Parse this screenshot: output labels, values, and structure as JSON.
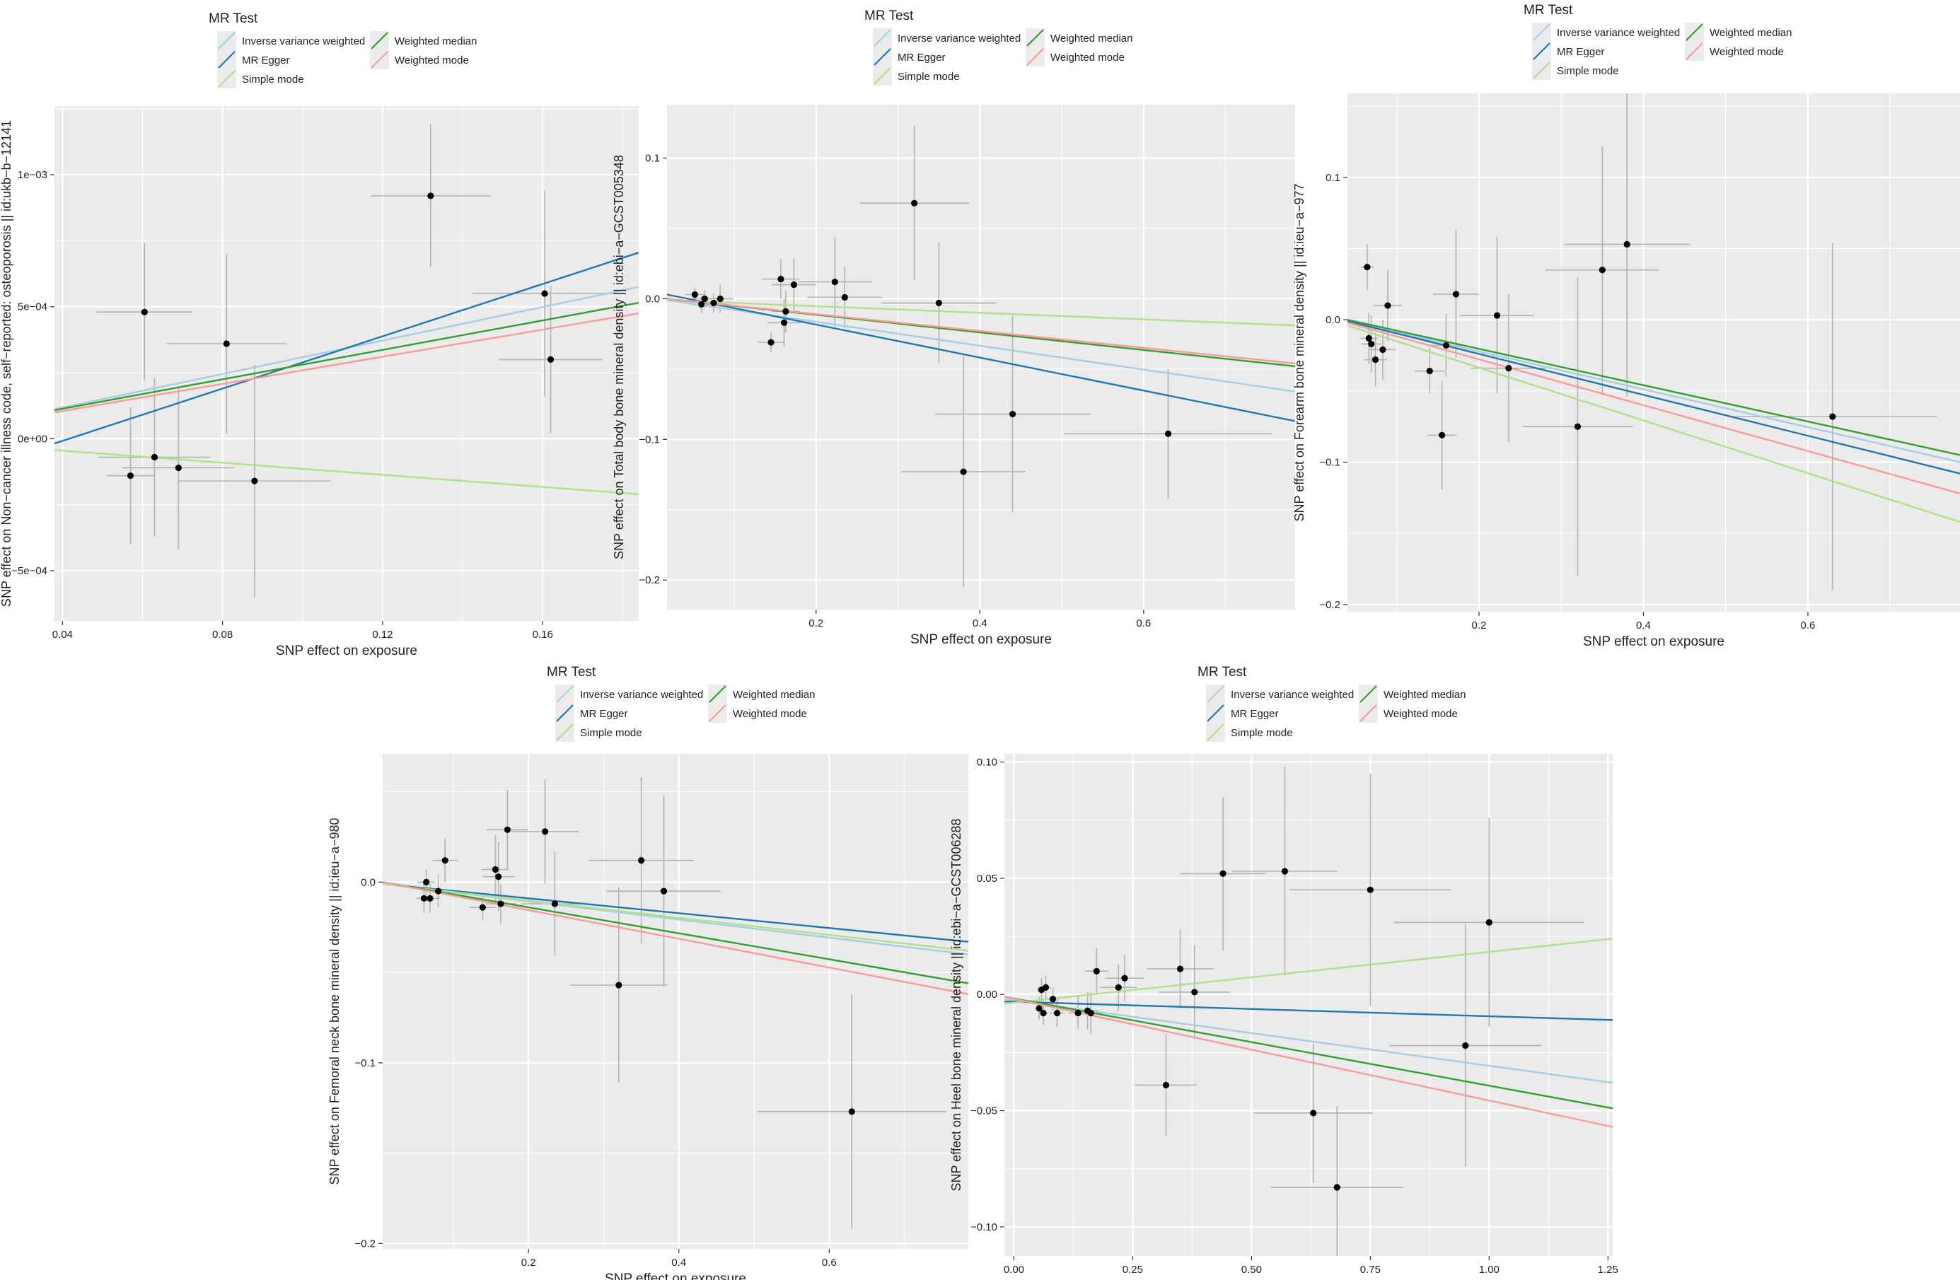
{
  "legend": {
    "title": "MR Test",
    "methods": [
      {
        "key": "ivw",
        "label": "Inverse variance weighted",
        "color": "#A6CEE3"
      },
      {
        "key": "egger",
        "label": "MR Egger",
        "color": "#1F78B4"
      },
      {
        "key": "simple",
        "label": "Simple mode",
        "color": "#B2DF8A"
      },
      {
        "key": "wmedian",
        "label": "Weighted median",
        "color": "#33A02C"
      },
      {
        "key": "wmode",
        "label": "Weighted mode",
        "color": "#FB9A99"
      }
    ]
  },
  "chart_data": [
    {
      "type": "scatter",
      "panel": "A",
      "xlabel": "SNP effect on exposure",
      "ylabel": "SNP effect on Non−cancer illness code, self−reported: osteoporosis || id:ukb−b−12141",
      "xlim": [
        0.038,
        0.184
      ],
      "ylim": [
        -0.00069,
        0.00126
      ],
      "xticks": [
        0.04,
        0.08,
        0.12,
        0.16
      ],
      "xtick_labels": [
        "0.04",
        "0.08",
        "0.12",
        "0.16"
      ],
      "yticks": [
        -0.0005,
        0,
        0.0005,
        0.001
      ],
      "ytick_labels": [
        "−5e−04",
        "0e+00",
        "5e−04",
        "1e−03"
      ],
      "points": [
        {
          "x": 0.057,
          "y": -0.00014,
          "se_x": 0.006,
          "se_y": 0.00026
        },
        {
          "x": 0.0605,
          "y": 0.00048,
          "se_x": 0.012,
          "se_y": 0.00026
        },
        {
          "x": 0.063,
          "y": -7e-05,
          "se_x": 0.014,
          "se_y": 0.0003
        },
        {
          "x": 0.069,
          "y": -0.00011,
          "se_x": 0.014,
          "se_y": 0.00031
        },
        {
          "x": 0.081,
          "y": 0.00036,
          "se_x": 0.015,
          "se_y": 0.00034
        },
        {
          "x": 0.088,
          "y": -0.00016,
          "se_x": 0.019,
          "se_y": 0.00044
        },
        {
          "x": 0.132,
          "y": 0.00092,
          "se_x": 0.015,
          "se_y": 0.00027
        },
        {
          "x": 0.1605,
          "y": 0.00055,
          "se_x": 0.018,
          "se_y": 0.00039
        },
        {
          "x": 0.162,
          "y": 0.0003,
          "se_x": 0.013,
          "se_y": 0.00028
        }
      ],
      "lines": [
        {
          "method": "ivw",
          "y0": 0.000112,
          "y1": 0.000575
        },
        {
          "method": "egger",
          "y0": -1.8e-05,
          "y1": 0.000705
        },
        {
          "method": "simple",
          "y0": -4.3e-05,
          "y1": -0.00021
        },
        {
          "method": "wmedian",
          "y0": 0.000108,
          "y1": 0.000515
        },
        {
          "method": "wmode",
          "y0": 0.0001,
          "y1": 0.000475
        }
      ]
    },
    {
      "type": "scatter",
      "panel": "B",
      "xlabel": "SNP effect on exposure",
      "ylabel": "SNP effect on Total body bone mineral density || id:ebi−a−GCST005348",
      "xlim": [
        0.018,
        0.785
      ],
      "ylim": [
        -0.221,
        0.138
      ],
      "xticks": [
        0.2,
        0.4,
        0.6
      ],
      "xtick_labels": [
        "0.2",
        "0.4",
        "0.6"
      ],
      "yticks": [
        -0.2,
        -0.1,
        0,
        0.1
      ],
      "ytick_labels": [
        "−0.2",
        "−0.1",
        "0.0",
        "0.1"
      ],
      "points": [
        {
          "x": 0.052,
          "y": 0.003,
          "se_x": 0.012,
          "se_y": 0.005
        },
        {
          "x": 0.06,
          "y": -0.004,
          "se_x": 0.013,
          "se_y": 0.006
        },
        {
          "x": 0.064,
          "y": 0.0,
          "se_x": 0.014,
          "se_y": 0.006
        },
        {
          "x": 0.075,
          "y": -0.003,
          "se_x": 0.015,
          "se_y": 0.007
        },
        {
          "x": 0.083,
          "y": 0.0,
          "se_x": 0.016,
          "se_y": 0.01
        },
        {
          "x": 0.145,
          "y": -0.031,
          "se_x": 0.016,
          "se_y": 0.007
        },
        {
          "x": 0.157,
          "y": 0.014,
          "se_x": 0.023,
          "se_y": 0.014
        },
        {
          "x": 0.163,
          "y": -0.009,
          "se_x": 0.017,
          "se_y": 0.015
        },
        {
          "x": 0.161,
          "y": -0.017,
          "se_x": 0.02,
          "se_y": 0.017
        },
        {
          "x": 0.173,
          "y": 0.01,
          "se_x": 0.027,
          "se_y": 0.019
        },
        {
          "x": 0.223,
          "y": 0.012,
          "se_x": 0.045,
          "se_y": 0.032
        },
        {
          "x": 0.235,
          "y": 0.001,
          "se_x": 0.046,
          "se_y": 0.022
        },
        {
          "x": 0.32,
          "y": 0.068,
          "se_x": 0.067,
          "se_y": 0.055
        },
        {
          "x": 0.35,
          "y": -0.003,
          "se_x": 0.07,
          "se_y": 0.043
        },
        {
          "x": 0.38,
          "y": -0.123,
          "se_x": 0.076,
          "se_y": 0.082
        },
        {
          "x": 0.44,
          "y": -0.082,
          "se_x": 0.095,
          "se_y": 0.07
        },
        {
          "x": 0.63,
          "y": -0.096,
          "se_x": 0.127,
          "se_y": 0.046
        }
      ],
      "lines": [
        {
          "method": "ivw",
          "y0": -0.001,
          "y1": -0.066
        },
        {
          "method": "egger",
          "y0": 0.003,
          "y1": -0.087
        },
        {
          "method": "simple",
          "y0": -0.001,
          "y1": -0.019
        },
        {
          "method": "wmedian",
          "y0": 0.0,
          "y1": -0.048
        },
        {
          "method": "wmode",
          "y0": 0.0,
          "y1": -0.046
        }
      ]
    },
    {
      "type": "scatter",
      "panel": "C",
      "xlabel": "SNP effect on exposure",
      "ylabel": "SNP effect on Forearm bone mineral density || id:ieu−a−977",
      "xlim": [
        0.04,
        0.785
      ],
      "ylim": [
        -0.205,
        0.159
      ],
      "xticks": [
        0.2,
        0.4,
        0.6
      ],
      "xtick_labels": [
        "0.2",
        "0.4",
        "0.6"
      ],
      "yticks": [
        -0.2,
        -0.1,
        0,
        0.1
      ],
      "ytick_labels": [
        "−0.2",
        "−0.1",
        "0.0",
        "0.1"
      ],
      "points": [
        {
          "x": 0.064,
          "y": 0.037,
          "se_x": 0.008,
          "se_y": 0.016
        },
        {
          "x": 0.066,
          "y": -0.013,
          "se_x": 0.011,
          "se_y": 0.018
        },
        {
          "x": 0.069,
          "y": -0.017,
          "se_x": 0.012,
          "se_y": 0.02
        },
        {
          "x": 0.074,
          "y": -0.028,
          "se_x": 0.014,
          "se_y": 0.019
        },
        {
          "x": 0.083,
          "y": -0.021,
          "se_x": 0.016,
          "se_y": 0.021
        },
        {
          "x": 0.089,
          "y": 0.01,
          "se_x": 0.017,
          "se_y": 0.025
        },
        {
          "x": 0.14,
          "y": -0.036,
          "se_x": 0.018,
          "se_y": 0.016
        },
        {
          "x": 0.155,
          "y": -0.081,
          "se_x": 0.018,
          "se_y": 0.038
        },
        {
          "x": 0.16,
          "y": -0.018,
          "se_x": 0.024,
          "se_y": 0.022
        },
        {
          "x": 0.172,
          "y": 0.018,
          "se_x": 0.028,
          "se_y": 0.045
        },
        {
          "x": 0.222,
          "y": 0.003,
          "se_x": 0.045,
          "se_y": 0.055
        },
        {
          "x": 0.236,
          "y": -0.034,
          "se_x": 0.046,
          "se_y": 0.052
        },
        {
          "x": 0.32,
          "y": -0.075,
          "se_x": 0.067,
          "se_y": 0.105
        },
        {
          "x": 0.35,
          "y": 0.035,
          "se_x": 0.069,
          "se_y": 0.087
        },
        {
          "x": 0.38,
          "y": 0.053,
          "se_x": 0.076,
          "se_y": 0.107
        },
        {
          "x": 0.63,
          "y": -0.068,
          "se_x": 0.127,
          "se_y": 0.122
        }
      ],
      "lines": [
        {
          "method": "ivw",
          "y0": -0.001,
          "y1": -0.1
        },
        {
          "method": "egger",
          "y0": -0.001,
          "y1": -0.108
        },
        {
          "method": "simple",
          "y0": -0.004,
          "y1": -0.142
        },
        {
          "method": "wmedian",
          "y0": 0.0,
          "y1": -0.095
        },
        {
          "method": "wmode",
          "y0": -0.002,
          "y1": -0.122
        }
      ]
    },
    {
      "type": "scatter",
      "panel": "D",
      "xlabel": "SNP effect on exposure",
      "ylabel": "SNP effect on Femoral neck bone mineral density || id:ieu−a−980",
      "xlim": [
        0.006,
        0.785
      ],
      "ylim": [
        -0.203,
        0.071
      ],
      "xticks": [
        0.2,
        0.4,
        0.6
      ],
      "xtick_labels": [
        "0.2",
        "0.4",
        "0.6"
      ],
      "yticks": [
        -0.2,
        -0.1,
        0
      ],
      "ytick_labels": [
        "−0.2",
        "−0.1",
        "0.0"
      ],
      "points": [
        {
          "x": 0.061,
          "y": -0.009,
          "se_x": 0.01,
          "se_y": 0.008
        },
        {
          "x": 0.064,
          "y": 0.0,
          "se_x": 0.012,
          "se_y": 0.007
        },
        {
          "x": 0.069,
          "y": -0.009,
          "se_x": 0.013,
          "se_y": 0.008
        },
        {
          "x": 0.08,
          "y": -0.005,
          "se_x": 0.015,
          "se_y": 0.009
        },
        {
          "x": 0.089,
          "y": 0.012,
          "se_x": 0.017,
          "se_y": 0.012
        },
        {
          "x": 0.139,
          "y": -0.014,
          "se_x": 0.018,
          "se_y": 0.007
        },
        {
          "x": 0.156,
          "y": 0.007,
          "se_x": 0.018,
          "se_y": 0.019
        },
        {
          "x": 0.16,
          "y": 0.003,
          "se_x": 0.021,
          "se_y": 0.019
        },
        {
          "x": 0.163,
          "y": -0.012,
          "se_x": 0.02,
          "se_y": 0.011
        },
        {
          "x": 0.172,
          "y": 0.029,
          "se_x": 0.028,
          "se_y": 0.022
        },
        {
          "x": 0.222,
          "y": 0.028,
          "se_x": 0.045,
          "se_y": 0.029
        },
        {
          "x": 0.235,
          "y": -0.012,
          "se_x": 0.045,
          "se_y": 0.029
        },
        {
          "x": 0.32,
          "y": -0.057,
          "se_x": 0.065,
          "se_y": 0.054
        },
        {
          "x": 0.35,
          "y": 0.012,
          "se_x": 0.07,
          "se_y": 0.046
        },
        {
          "x": 0.38,
          "y": -0.005,
          "se_x": 0.076,
          "se_y": 0.053
        },
        {
          "x": 0.63,
          "y": -0.127,
          "se_x": 0.126,
          "se_y": 0.065
        }
      ],
      "lines": [
        {
          "method": "ivw",
          "y0": -0.001,
          "y1": -0.04
        },
        {
          "method": "egger",
          "y0": -0.001,
          "y1": -0.033
        },
        {
          "method": "simple",
          "y0": -0.001,
          "y1": -0.038
        },
        {
          "method": "wmedian",
          "y0": 0.0,
          "y1": -0.056
        },
        {
          "method": "wmode",
          "y0": 0.0,
          "y1": -0.062
        }
      ]
    },
    {
      "type": "scatter",
      "panel": "E",
      "xlabel": "SNP effect on exposure",
      "ylabel": "SNP effect on Heel bone mineral density || id:ebi−a−GCST006288",
      "xlim": [
        -0.02,
        1.26
      ],
      "ylim": [
        -0.1125,
        0.1035
      ],
      "xticks": [
        0,
        0.25,
        0.5,
        0.75,
        1,
        1.25
      ],
      "xtick_labels": [
        "0.00",
        "0.25",
        "0.50",
        "0.75",
        "1.00",
        "1.25"
      ],
      "yticks": [
        -0.1,
        -0.05,
        0,
        0.05,
        0.1
      ],
      "ytick_labels": [
        "−0.10",
        "−0.05",
        "0.00",
        "0.05",
        "0.10"
      ],
      "points": [
        {
          "x": 0.053,
          "y": -0.006,
          "se_x": 0.008,
          "se_y": 0.005
        },
        {
          "x": 0.058,
          "y": 0.002,
          "se_x": 0.009,
          "se_y": 0.005
        },
        {
          "x": 0.062,
          "y": -0.008,
          "se_x": 0.01,
          "se_y": 0.005
        },
        {
          "x": 0.067,
          "y": 0.003,
          "se_x": 0.011,
          "se_y": 0.005
        },
        {
          "x": 0.082,
          "y": -0.002,
          "se_x": 0.014,
          "se_y": 0.005
        },
        {
          "x": 0.091,
          "y": -0.008,
          "se_x": 0.016,
          "se_y": 0.006
        },
        {
          "x": 0.135,
          "y": -0.008,
          "se_x": 0.02,
          "se_y": 0.007
        },
        {
          "x": 0.155,
          "y": -0.007,
          "se_x": 0.022,
          "se_y": 0.008
        },
        {
          "x": 0.162,
          "y": -0.008,
          "se_x": 0.023,
          "se_y": 0.009
        },
        {
          "x": 0.174,
          "y": 0.01,
          "se_x": 0.025,
          "se_y": 0.01
        },
        {
          "x": 0.22,
          "y": 0.003,
          "se_x": 0.04,
          "se_y": 0.01
        },
        {
          "x": 0.233,
          "y": 0.007,
          "se_x": 0.04,
          "se_y": 0.01
        },
        {
          "x": 0.32,
          "y": -0.039,
          "se_x": 0.065,
          "se_y": 0.022
        },
        {
          "x": 0.35,
          "y": 0.011,
          "se_x": 0.07,
          "se_y": 0.017
        },
        {
          "x": 0.38,
          "y": 0.001,
          "se_x": 0.075,
          "se_y": 0.02
        },
        {
          "x": 0.44,
          "y": 0.052,
          "se_x": 0.09,
          "se_y": 0.033
        },
        {
          "x": 0.57,
          "y": 0.053,
          "se_x": 0.11,
          "se_y": 0.045
        },
        {
          "x": 0.63,
          "y": -0.051,
          "se_x": 0.125,
          "se_y": 0.03
        },
        {
          "x": 0.68,
          "y": -0.083,
          "se_x": 0.14,
          "se_y": 0.035
        },
        {
          "x": 0.75,
          "y": 0.045,
          "se_x": 0.17,
          "se_y": 0.05
        },
        {
          "x": 0.95,
          "y": -0.022,
          "se_x": 0.16,
          "se_y": 0.052
        },
        {
          "x": 1.0,
          "y": 0.031,
          "se_x": 0.2,
          "se_y": 0.045
        }
      ],
      "lines": [
        {
          "method": "ivw",
          "y0": -0.002,
          "y1": -0.038
        },
        {
          "method": "egger",
          "y0": -0.003,
          "y1": -0.011
        },
        {
          "method": "simple",
          "y0": -0.004,
          "y1": 0.024
        },
        {
          "method": "wmedian",
          "y0": -0.001,
          "y1": -0.049
        },
        {
          "method": "wmode",
          "y0": -0.001,
          "y1": -0.057
        }
      ]
    }
  ]
}
